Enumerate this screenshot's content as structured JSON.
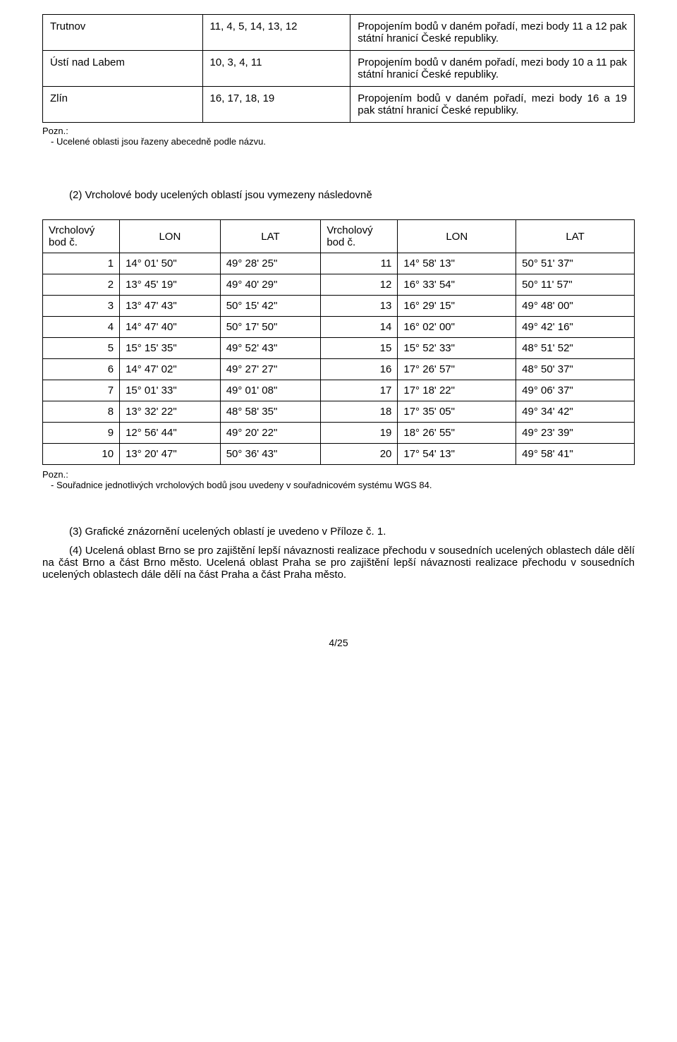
{
  "table1": {
    "rows": [
      {
        "name": "Trutnov",
        "codes": "11, 4, 5, 14, 13, 12",
        "desc": "Propojením bodů v daném pořadí, mezi body 11 a 12 pak státní hranicí České republiky."
      },
      {
        "name": "Ústí nad Labem",
        "codes": "10, 3, 4, 11",
        "desc": "Propojením bodů v daném pořadí, mezi body 10 a 11 pak státní hranicí České republiky."
      },
      {
        "name": "Zlín",
        "codes": "16, 17, 18, 19",
        "desc": "Propojením bodů v daném pořadí, mezi body 16 a 19 pak státní hranicí České republiky."
      }
    ]
  },
  "note1": {
    "label": "Pozn.:",
    "text": "- Ucelené oblasti jsou řazeny abecedně podle názvu."
  },
  "section2_heading": "(2)  Vrcholové body ucelených oblastí jsou vymezeny následovně",
  "table2": {
    "headers": {
      "col1": "Vrcholový bod č.",
      "lon": "LON",
      "lat": "LAT",
      "col2": "Vrcholový bod č."
    },
    "rows": [
      {
        "a": "1",
        "alon": "14° 01' 50\"",
        "alat": "49° 28' 25\"",
        "b": "11",
        "blon": "14° 58' 13\"",
        "blat": "50° 51' 37\""
      },
      {
        "a": "2",
        "alon": "13° 45' 19\"",
        "alat": "49° 40' 29\"",
        "b": "12",
        "blon": "16° 33' 54\"",
        "blat": "50° 11' 57\""
      },
      {
        "a": "3",
        "alon": "13° 47' 43\"",
        "alat": "50° 15' 42\"",
        "b": "13",
        "blon": "16° 29' 15\"",
        "blat": "49° 48' 00\""
      },
      {
        "a": "4",
        "alon": "14° 47' 40\"",
        "alat": "50° 17' 50\"",
        "b": "14",
        "blon": "16° 02' 00\"",
        "blat": "49° 42' 16\""
      },
      {
        "a": "5",
        "alon": "15° 15' 35\"",
        "alat": "49° 52' 43\"",
        "b": "15",
        "blon": "15° 52' 33\"",
        "blat": "48° 51' 52\""
      },
      {
        "a": "6",
        "alon": "14° 47' 02\"",
        "alat": "49° 27' 27\"",
        "b": "16",
        "blon": "17° 26' 57\"",
        "blat": "48° 50' 37\""
      },
      {
        "a": "7",
        "alon": "15° 01' 33\"",
        "alat": "49° 01' 08\"",
        "b": "17",
        "blon": "17° 18' 22\"",
        "blat": "49° 06' 37\""
      },
      {
        "a": "8",
        "alon": "13° 32' 22\"",
        "alat": "48° 58' 35\"",
        "b": "18",
        "blon": "17° 35' 05\"",
        "blat": "49° 34' 42\""
      },
      {
        "a": "9",
        "alon": "12° 56' 44\"",
        "alat": "49° 20' 22\"",
        "b": "19",
        "blon": "18° 26' 55\"",
        "blat": "49° 23' 39\""
      },
      {
        "a": "10",
        "alon": "13° 20' 47\"",
        "alat": "50° 36' 43\"",
        "b": "20",
        "blon": "17° 54' 13\"",
        "blat": "49° 58' 41\""
      }
    ]
  },
  "note2": {
    "label": "Pozn.:",
    "text": "- Souřadnice jednotlivých vrcholových bodů jsou uvedeny v souřadnicovém systému WGS 84."
  },
  "para3": "(3)  Grafické znázornění ucelených oblastí je uvedeno v Příloze č. 1.",
  "para4": "(4) Ucelená oblast Brno se pro zajištění lepší návaznosti realizace přechodu v sousedních ucelených oblastech dále dělí na část Brno a část Brno město. Ucelená oblast Praha se pro zajištění lepší návaznosti realizace přechodu v sousedních ucelených oblastech dále dělí na část Praha a část Praha město.",
  "page_footer": "4/25"
}
